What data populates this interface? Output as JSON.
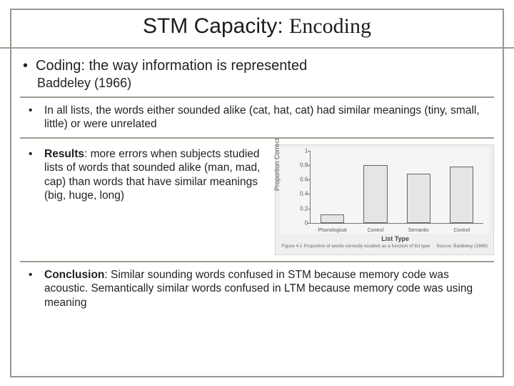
{
  "title_part1": "STM Capacity: ",
  "title_part2": "Encoding",
  "bullet_coding": "Coding: the way information is represented",
  "subhead": "Baddeley (1966)",
  "bullet_lists": "In all lists, the words either sounded alike (cat, hat, cat) had similar meanings (tiny, small, little) or were unrelated",
  "results_label": "Results",
  "results_text": ": more errors when subjects studied lists of words that sounded alike (man, mad, cap) than words that have similar meanings (big, huge, long)",
  "conclusion_label": "Conclusion",
  "conclusion_text": ": Similar sounding words confused in STM because memory code was acoustic. Semantically similar words confused in LTM because memory code was using meaning",
  "chart": {
    "type": "bar",
    "ylabel": "Proportion Correct",
    "xaxis_title": "List Type",
    "ylim": [
      0,
      1
    ],
    "yticks": [
      0,
      0.2,
      0.4,
      0.6,
      0.8,
      1
    ],
    "categories": [
      "Phonological",
      "Control",
      "Semantic",
      "Control"
    ],
    "values": [
      0.12,
      0.8,
      0.68,
      0.78
    ],
    "bar_fill": "#e5e5e5",
    "bar_border": "#666666",
    "axis_color": "#777777",
    "bg": "#efefef",
    "caption_left": "Figure 4.1  Proportion of words correctly recalled as a function of list type",
    "caption_right": "Source: Baddeley (1966)"
  }
}
